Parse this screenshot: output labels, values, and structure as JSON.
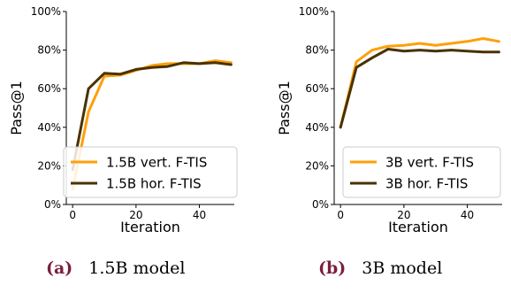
{
  "chart_data": [
    {
      "type": "line",
      "ylabel": "Pass@1",
      "xlabel": "Iteration",
      "xlim": [
        -2,
        51
      ],
      "ylim": [
        0,
        100
      ],
      "xticks": [
        0,
        20,
        40
      ],
      "yticks": [
        0,
        20,
        40,
        60,
        80,
        100
      ],
      "ytick_labels": [
        "0%",
        "20%",
        "40%",
        "60%",
        "80%",
        "100%"
      ],
      "grid": false,
      "legend": "lower-center",
      "series": [
        {
          "name": "1.5B vert. F-TIS",
          "color": "#ff9f0a",
          "x": [
            0,
            5,
            10,
            15,
            20,
            25,
            30,
            35,
            40,
            45,
            50
          ],
          "y": [
            8,
            48,
            66.5,
            67,
            69.5,
            72,
            73,
            73,
            73,
            74.5,
            73.5
          ]
        },
        {
          "name": "1.5B hor. F-TIS",
          "color": "#4a3200",
          "x": [
            0,
            5,
            10,
            15,
            20,
            25,
            30,
            35,
            40,
            45,
            50
          ],
          "y": [
            18,
            60,
            68,
            67.5,
            70,
            71,
            71.5,
            73.5,
            73,
            73.5,
            72.5
          ]
        }
      ]
    },
    {
      "type": "line",
      "ylabel": "Pass@1",
      "xlabel": "Iteration",
      "xlim": [
        -2,
        51
      ],
      "ylim": [
        0,
        100
      ],
      "xticks": [
        0,
        20,
        40
      ],
      "yticks": [
        0,
        20,
        40,
        60,
        80,
        100
      ],
      "ytick_labels": [
        "0%",
        "20%",
        "40%",
        "60%",
        "80%",
        "100%"
      ],
      "grid": false,
      "legend": "lower-center",
      "series": [
        {
          "name": "3B vert. F-TIS",
          "color": "#ff9f0a",
          "x": [
            0,
            5,
            10,
            15,
            20,
            25,
            30,
            35,
            40,
            45,
            50
          ],
          "y": [
            40,
            74,
            80,
            82,
            82.5,
            83.5,
            82.5,
            83.5,
            84.5,
            86,
            84.5
          ]
        },
        {
          "name": "3B hor. F-TIS",
          "color": "#4a3200",
          "x": [
            0,
            5,
            10,
            15,
            20,
            25,
            30,
            35,
            40,
            45,
            50
          ],
          "y": [
            40,
            71,
            76,
            80.5,
            79.5,
            80,
            79.5,
            80,
            79.5,
            79,
            79
          ]
        }
      ]
    }
  ],
  "captions": [
    {
      "label": "(a)",
      "text": "1.5B model"
    },
    {
      "label": "(b)",
      "text": "3B model"
    }
  ]
}
